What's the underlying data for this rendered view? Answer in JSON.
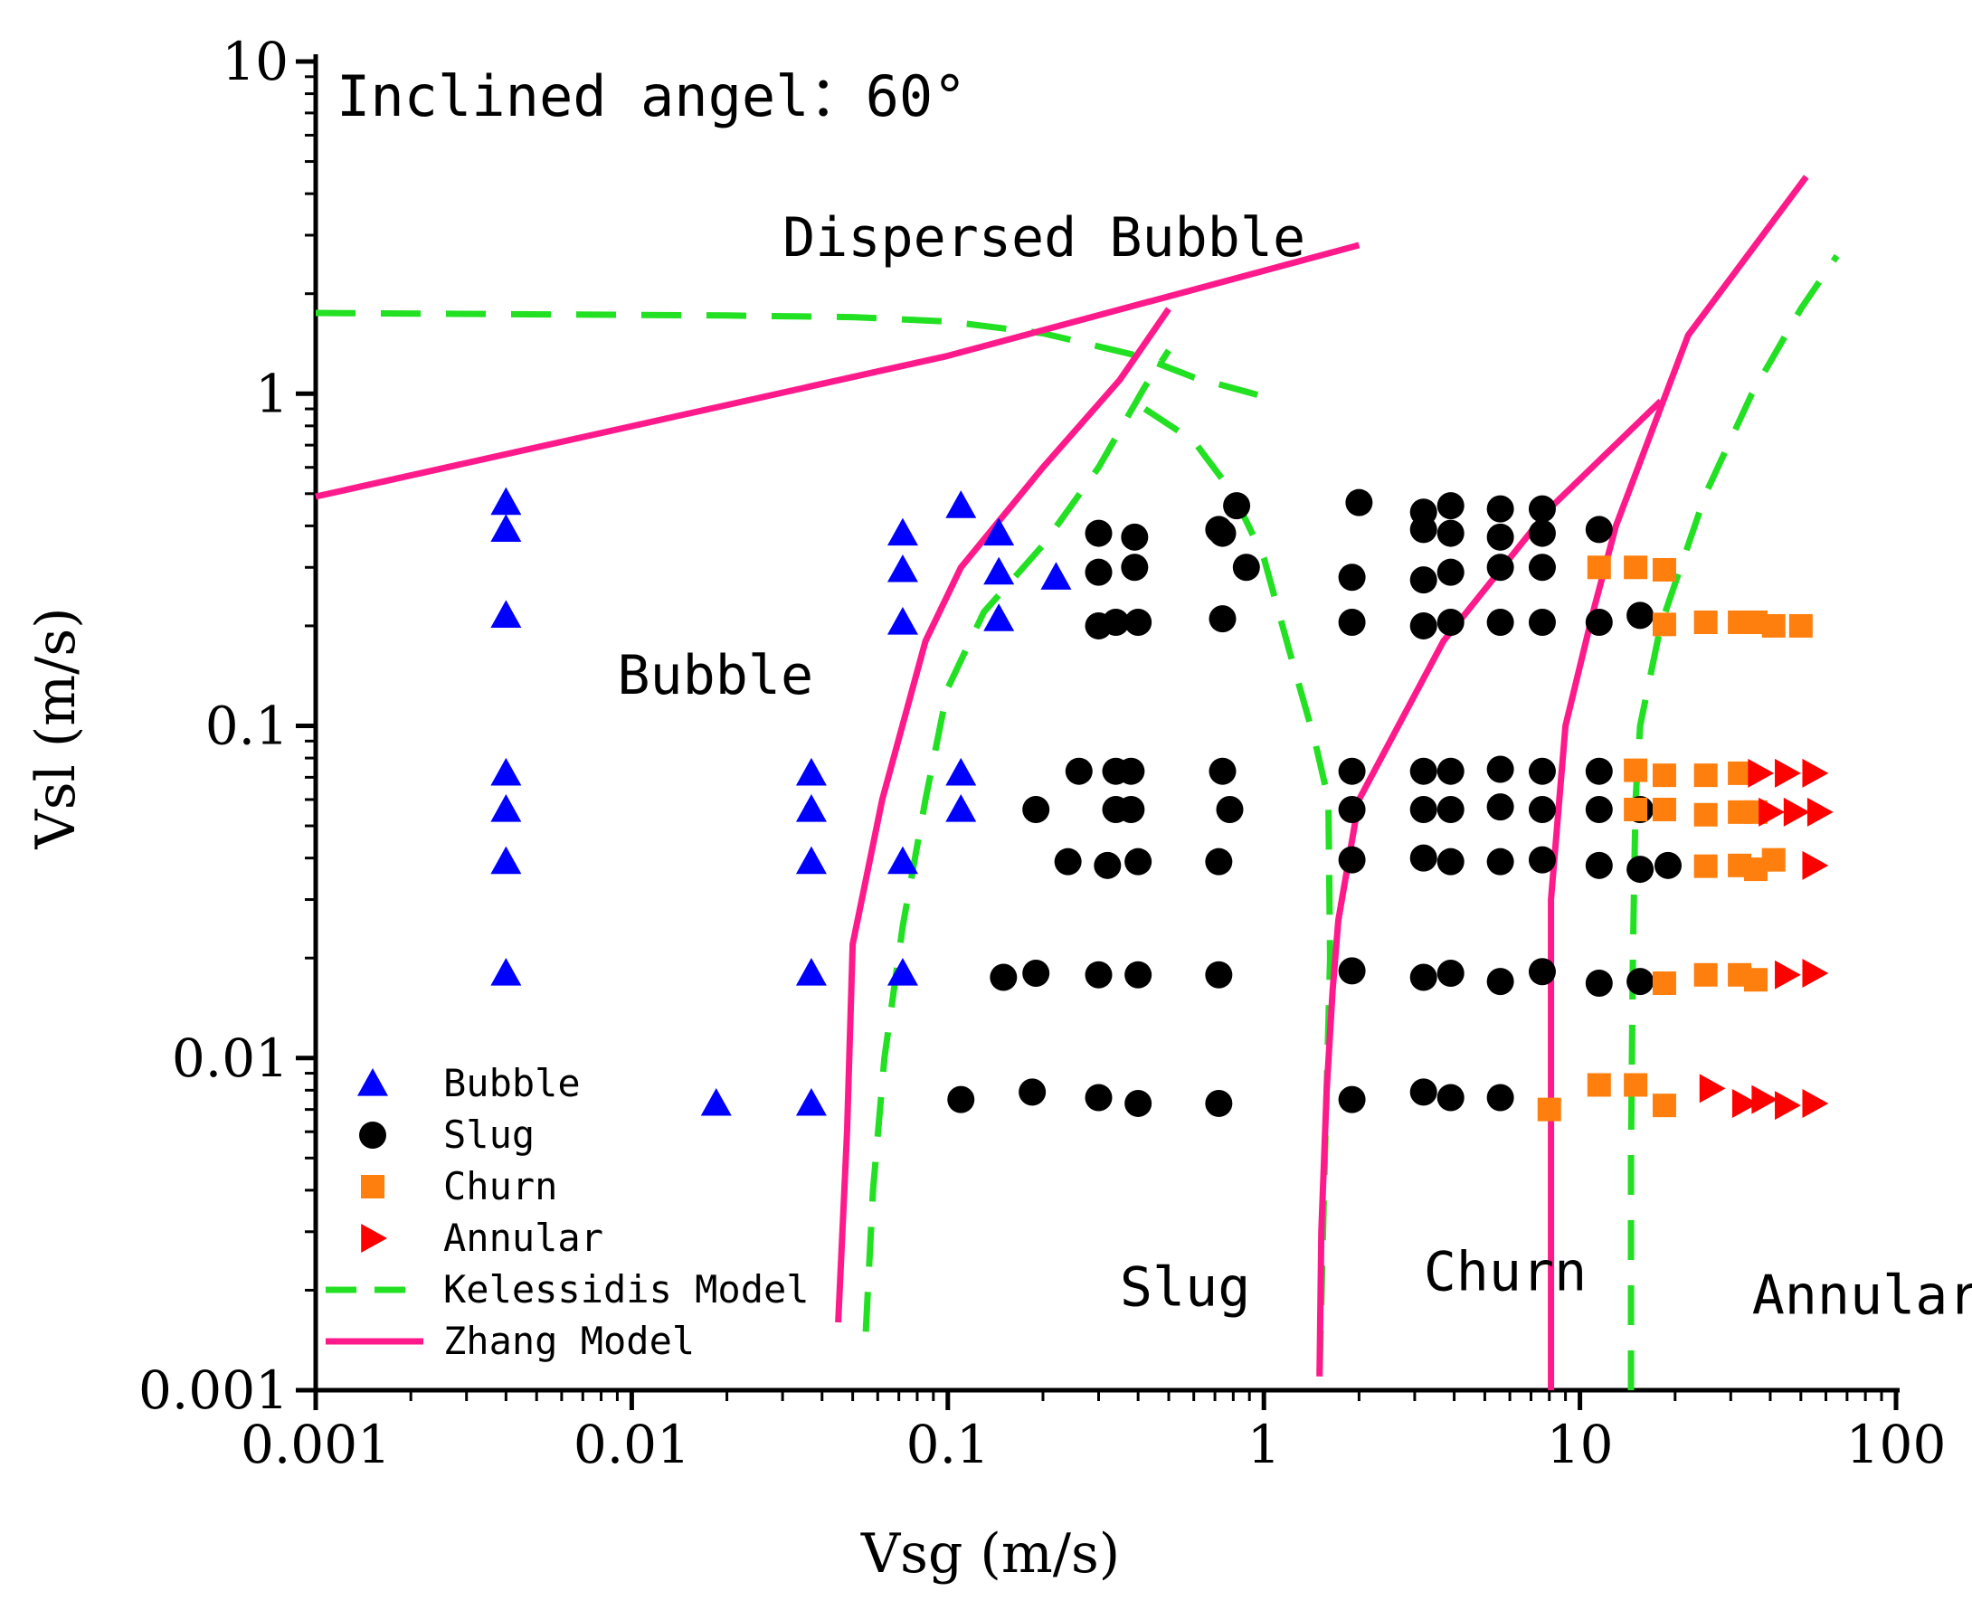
{
  "chart_data": {
    "type": "scatter",
    "x_scale": "log",
    "y_scale": "log",
    "xlim": [
      0.001,
      100
    ],
    "ylim": [
      0.001,
      10
    ],
    "xlabel": "Vsg (m/s)",
    "ylabel": "Vsl (m/s)",
    "x_ticks": [
      {
        "value": 0.001,
        "label": "0.001"
      },
      {
        "value": 0.01,
        "label": "0.01"
      },
      {
        "value": 0.1,
        "label": "0.1"
      },
      {
        "value": 1,
        "label": "1"
      },
      {
        "value": 10,
        "label": "10"
      },
      {
        "value": 100,
        "label": "100"
      }
    ],
    "y_ticks": [
      {
        "value": 0.001,
        "label": "0.001"
      },
      {
        "value": 0.01,
        "label": "0.01"
      },
      {
        "value": 0.1,
        "label": "0.1"
      },
      {
        "value": 1,
        "label": "1"
      },
      {
        "value": 10,
        "label": "10"
      }
    ],
    "annotation": "Inclined angel：60°",
    "grid": false,
    "legend_position": "bottom-left",
    "region_labels": [
      {
        "text": "Dispersed Bubble",
        "x": 0.03,
        "y": 2.6
      },
      {
        "text": "Bubble",
        "x": 0.009,
        "y": 0.125
      },
      {
        "text": "Slug",
        "x": 0.35,
        "y": 0.0018
      },
      {
        "text": "Churn",
        "x": 3.2,
        "y": 0.002
      },
      {
        "text": "Annular",
        "x": 35,
        "y": 0.0017
      }
    ],
    "series": [
      {
        "name": "Bubble",
        "kind": "scatter",
        "marker": "triangle-up",
        "color": "#0000ff",
        "points": [
          [
            0.004,
            0.47
          ],
          [
            0.004,
            0.39
          ],
          [
            0.004,
            0.215
          ],
          [
            0.004,
            0.072
          ],
          [
            0.004,
            0.056
          ],
          [
            0.004,
            0.039
          ],
          [
            0.004,
            0.018
          ],
          [
            0.0185,
            0.0073
          ],
          [
            0.037,
            0.0073
          ],
          [
            0.037,
            0.018
          ],
          [
            0.037,
            0.039
          ],
          [
            0.037,
            0.056
          ],
          [
            0.037,
            0.072
          ],
          [
            0.072,
            0.018
          ],
          [
            0.072,
            0.039
          ],
          [
            0.072,
            0.205
          ],
          [
            0.072,
            0.295
          ],
          [
            0.072,
            0.38
          ],
          [
            0.11,
            0.46
          ],
          [
            0.11,
            0.072
          ],
          [
            0.11,
            0.056
          ],
          [
            0.145,
            0.38
          ],
          [
            0.145,
            0.29
          ],
          [
            0.145,
            0.21
          ],
          [
            0.22,
            0.28
          ]
        ]
      },
      {
        "name": "Slug",
        "kind": "scatter",
        "marker": "circle",
        "color": "#000000",
        "points": [
          [
            0.11,
            0.0075
          ],
          [
            0.185,
            0.0079
          ],
          [
            0.3,
            0.0076
          ],
          [
            0.4,
            0.0073
          ],
          [
            0.72,
            0.0073
          ],
          [
            0.15,
            0.0175
          ],
          [
            0.19,
            0.018
          ],
          [
            0.3,
            0.0178
          ],
          [
            0.4,
            0.0178
          ],
          [
            0.72,
            0.0178
          ],
          [
            0.24,
            0.039
          ],
          [
            0.32,
            0.038
          ],
          [
            0.4,
            0.039
          ],
          [
            0.72,
            0.039
          ],
          [
            0.19,
            0.056
          ],
          [
            0.34,
            0.056
          ],
          [
            0.38,
            0.056
          ],
          [
            0.78,
            0.056
          ],
          [
            0.26,
            0.073
          ],
          [
            0.34,
            0.073
          ],
          [
            0.38,
            0.073
          ],
          [
            0.74,
            0.073
          ],
          [
            0.3,
            0.2
          ],
          [
            0.34,
            0.205
          ],
          [
            0.4,
            0.205
          ],
          [
            0.74,
            0.21
          ],
          [
            0.3,
            0.29
          ],
          [
            0.39,
            0.3
          ],
          [
            0.88,
            0.3
          ],
          [
            0.3,
            0.38
          ],
          [
            0.39,
            0.37
          ],
          [
            0.72,
            0.39
          ],
          [
            0.74,
            0.38
          ],
          [
            0.82,
            0.46
          ],
          [
            1.9,
            0.0075
          ],
          [
            3.2,
            0.0079
          ],
          [
            3.9,
            0.0076
          ],
          [
            5.6,
            0.0076
          ],
          [
            1.9,
            0.0183
          ],
          [
            3.2,
            0.0175
          ],
          [
            3.9,
            0.018
          ],
          [
            5.6,
            0.017
          ],
          [
            7.6,
            0.0182
          ],
          [
            11.5,
            0.0168
          ],
          [
            15.5,
            0.017
          ],
          [
            1.9,
            0.0395
          ],
          [
            3.2,
            0.04
          ],
          [
            3.9,
            0.039
          ],
          [
            5.6,
            0.039
          ],
          [
            7.6,
            0.0395
          ],
          [
            11.5,
            0.038
          ],
          [
            15.5,
            0.037
          ],
          [
            19,
            0.038
          ],
          [
            1.9,
            0.056
          ],
          [
            3.2,
            0.056
          ],
          [
            3.9,
            0.056
          ],
          [
            5.6,
            0.057
          ],
          [
            7.6,
            0.056
          ],
          [
            11.5,
            0.056
          ],
          [
            15.5,
            0.056
          ],
          [
            1.9,
            0.073
          ],
          [
            3.2,
            0.073
          ],
          [
            3.9,
            0.073
          ],
          [
            5.6,
            0.074
          ],
          [
            7.6,
            0.073
          ],
          [
            11.5,
            0.073
          ],
          [
            1.9,
            0.205
          ],
          [
            3.2,
            0.2
          ],
          [
            3.9,
            0.205
          ],
          [
            5.6,
            0.205
          ],
          [
            7.6,
            0.205
          ],
          [
            11.5,
            0.205
          ],
          [
            15.5,
            0.215
          ],
          [
            1.9,
            0.28
          ],
          [
            3.2,
            0.275
          ],
          [
            3.9,
            0.29
          ],
          [
            5.6,
            0.3
          ],
          [
            7.6,
            0.3
          ],
          [
            2,
            0.47
          ],
          [
            3.2,
            0.44
          ],
          [
            3.9,
            0.46
          ],
          [
            5.6,
            0.45
          ],
          [
            7.6,
            0.45
          ],
          [
            3.2,
            0.39
          ],
          [
            3.9,
            0.38
          ],
          [
            5.6,
            0.37
          ],
          [
            7.6,
            0.38
          ],
          [
            11.5,
            0.39
          ]
        ]
      },
      {
        "name": "Churn",
        "kind": "scatter",
        "marker": "square",
        "color": "#ff7f0e",
        "points": [
          [
            8,
            0.007
          ],
          [
            11.5,
            0.0083
          ],
          [
            15,
            0.0083
          ],
          [
            18.5,
            0.0072
          ],
          [
            18.5,
            0.0168
          ],
          [
            25,
            0.0178
          ],
          [
            32,
            0.0178
          ],
          [
            36,
            0.0172
          ],
          [
            25,
            0.0378
          ],
          [
            32,
            0.038
          ],
          [
            36,
            0.037
          ],
          [
            41,
            0.0395
          ],
          [
            15,
            0.0735
          ],
          [
            18.5,
            0.071
          ],
          [
            25,
            0.071
          ],
          [
            32,
            0.072
          ],
          [
            15,
            0.056
          ],
          [
            18.5,
            0.056
          ],
          [
            25,
            0.054
          ],
          [
            32,
            0.055
          ],
          [
            36,
            0.055
          ],
          [
            11.5,
            0.3
          ],
          [
            15,
            0.3
          ],
          [
            18.5,
            0.295
          ],
          [
            18.5,
            0.202
          ],
          [
            25,
            0.205
          ],
          [
            32,
            0.205
          ],
          [
            36,
            0.205
          ],
          [
            41,
            0.2
          ],
          [
            50,
            0.2
          ]
        ]
      },
      {
        "name": "Annular",
        "kind": "scatter",
        "marker": "triangle-right",
        "color": "#ff0000",
        "points": [
          [
            26,
            0.0081
          ],
          [
            33,
            0.0073
          ],
          [
            38,
            0.0075
          ],
          [
            45,
            0.0072
          ],
          [
            55,
            0.0073
          ],
          [
            45,
            0.0178
          ],
          [
            55,
            0.018
          ],
          [
            55,
            0.038
          ],
          [
            37,
            0.072
          ],
          [
            45,
            0.072
          ],
          [
            55,
            0.072
          ],
          [
            40,
            0.055
          ],
          [
            48,
            0.055
          ],
          [
            57,
            0.055
          ]
        ]
      },
      {
        "name": "Kelessidis Model",
        "kind": "line",
        "style": "dashed",
        "color": "#22e022",
        "segments": [
          [
            [
              0.001,
              1.75
            ],
            [
              0.02,
              1.72
            ],
            [
              0.05,
              1.7
            ],
            [
              0.1,
              1.65
            ],
            [
              0.2,
              1.52
            ],
            [
              0.4,
              1.3
            ],
            [
              0.6,
              1.12
            ],
            [
              1,
              0.98
            ]
          ],
          [
            [
              0.055,
              0.0015
            ],
            [
              0.058,
              0.004
            ],
            [
              0.063,
              0.01
            ],
            [
              0.072,
              0.025
            ],
            [
              0.085,
              0.06
            ],
            [
              0.1,
              0.13
            ],
            [
              0.13,
              0.22
            ],
            [
              0.2,
              0.35
            ],
            [
              0.3,
              0.6
            ],
            [
              0.42,
              1.05
            ],
            [
              0.5,
              1.35
            ]
          ],
          [
            [
              0.42,
              0.9
            ],
            [
              0.6,
              0.72
            ],
            [
              0.8,
              0.5
            ],
            [
              1,
              0.32
            ],
            [
              1.2,
              0.17
            ],
            [
              1.45,
              0.09
            ],
            [
              1.6,
              0.06
            ],
            [
              1.62,
              0.02
            ],
            [
              1.58,
              0.008
            ],
            [
              1.55,
              0.004
            ],
            [
              1.5,
              0.0011
            ]
          ],
          [
            [
              14.5,
              0.001
            ],
            [
              14.5,
              0.005
            ],
            [
              14.7,
              0.02
            ],
            [
              15,
              0.06
            ],
            [
              15.5,
              0.1
            ],
            [
              18,
              0.2
            ],
            [
              25,
              0.5
            ],
            [
              35,
              1.0
            ],
            [
              50,
              1.8
            ],
            [
              65,
              2.6
            ]
          ]
        ]
      },
      {
        "name": "Zhang Model",
        "kind": "line",
        "style": "solid",
        "color": "#ff1a8c",
        "segments": [
          [
            [
              0.001,
              0.49
            ],
            [
              0.1,
              1.3
            ],
            [
              2,
              2.8
            ]
          ],
          [
            [
              0.045,
              0.0016
            ],
            [
              0.048,
              0.006
            ],
            [
              0.05,
              0.022
            ],
            [
              0.062,
              0.06
            ],
            [
              0.085,
              0.18
            ],
            [
              0.11,
              0.3
            ],
            [
              0.2,
              0.6
            ],
            [
              0.35,
              1.1
            ],
            [
              0.5,
              1.8
            ]
          ],
          [
            [
              1.5,
              0.0011
            ],
            [
              1.52,
              0.003
            ],
            [
              1.58,
              0.008
            ],
            [
              1.65,
              0.016
            ],
            [
              1.72,
              0.026
            ],
            [
              2,
              0.06
            ],
            [
              3.7,
              0.18
            ],
            [
              8,
              0.45
            ],
            [
              18,
              0.95
            ]
          ],
          [
            [
              8.1,
              0.001
            ],
            [
              8.1,
              0.01
            ],
            [
              8.1,
              0.03
            ],
            [
              9,
              0.1
            ],
            [
              11,
              0.22
            ],
            [
              13,
              0.4
            ],
            [
              22,
              1.5
            ],
            [
              52,
              4.5
            ]
          ]
        ]
      }
    ]
  }
}
